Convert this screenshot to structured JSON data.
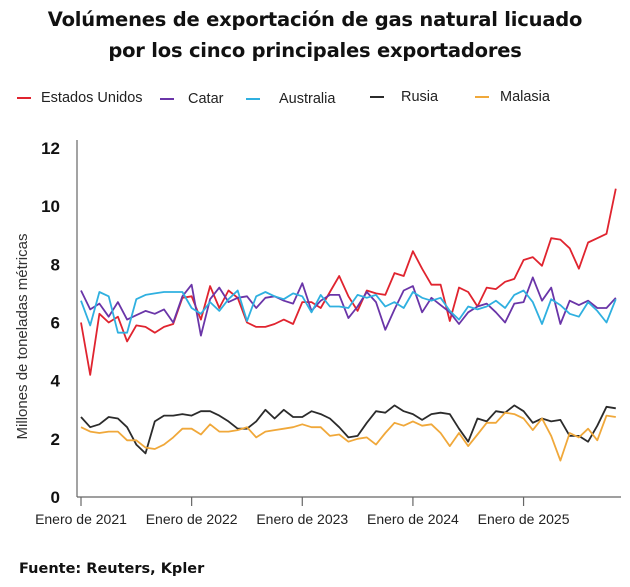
{
  "title_line1": "Volúmenes de exportación de gas natural licuado",
  "title_line2": "por los cinco principales exportadores",
  "source": "Fuente: Reuters, Kpler",
  "chart_data": {
    "type": "line",
    "title": "Volúmenes de exportación de gas natural licuado por los cinco principales exportadores",
    "xlabel": "",
    "ylabel": "Millones de toneladas métricas",
    "ylim": [
      0,
      12
    ],
    "yticks": [
      0,
      2,
      4,
      6,
      8,
      10,
      12
    ],
    "xtick_labels": [
      "Enero de 2021",
      "Enero de 2022",
      "Enero de 2023",
      "Enero de 2024",
      "Enero de 2025"
    ],
    "xtick_indices": [
      0,
      12,
      24,
      36,
      48
    ],
    "x_start": "Enero de 2021",
    "x_frequency": "monthly",
    "grid": false,
    "legend_position": "top",
    "series": [
      {
        "name": "Estados Unidos",
        "color": "#e0242f",
        "values": [
          6.0,
          4.2,
          6.3,
          6.0,
          6.2,
          5.35,
          5.9,
          5.85,
          5.65,
          5.85,
          5.95,
          6.85,
          6.9,
          6.1,
          7.25,
          6.5,
          7.1,
          6.85,
          6.0,
          5.85,
          5.85,
          5.95,
          6.1,
          5.95,
          6.7,
          6.7,
          6.5,
          7.05,
          7.6,
          6.9,
          6.4,
          7.1,
          7.0,
          6.95,
          7.7,
          7.6,
          8.45,
          7.85,
          7.3,
          7.3,
          6.05,
          7.2,
          7.05,
          6.55,
          7.2,
          7.15,
          7.4,
          7.5,
          8.15,
          8.25,
          7.95,
          8.9,
          8.85,
          8.55,
          7.85,
          8.75,
          8.9,
          9.05,
          10.6
        ]
      },
      {
        "name": "Catar",
        "color": "#6a35a8",
        "values": [
          7.1,
          6.45,
          6.65,
          6.2,
          6.7,
          6.1,
          6.25,
          6.4,
          6.3,
          6.45,
          6.0,
          6.9,
          7.3,
          5.55,
          6.8,
          7.2,
          6.7,
          6.85,
          6.9,
          6.5,
          6.85,
          6.9,
          6.75,
          6.65,
          7.35,
          6.4,
          6.75,
          6.95,
          6.95,
          6.15,
          6.55,
          7.05,
          6.7,
          5.75,
          6.45,
          7.1,
          7.25,
          6.35,
          6.85,
          6.6,
          6.35,
          5.95,
          6.35,
          6.55,
          6.65,
          6.35,
          6.0,
          6.65,
          6.7,
          7.55,
          6.75,
          7.2,
          5.95,
          6.75,
          6.6,
          6.75,
          6.5,
          6.5,
          6.85
        ]
      },
      {
        "name": "Australia",
        "color": "#2fb0e0",
        "values": [
          6.75,
          5.9,
          7.05,
          6.9,
          5.65,
          5.65,
          6.8,
          6.95,
          7.0,
          7.05,
          7.05,
          7.05,
          6.5,
          6.3,
          6.7,
          6.4,
          6.8,
          7.1,
          6.05,
          6.9,
          7.05,
          6.9,
          6.8,
          7.0,
          6.9,
          6.35,
          6.95,
          6.55,
          6.55,
          6.5,
          6.95,
          6.85,
          6.95,
          6.55,
          6.7,
          6.5,
          7.05,
          6.85,
          6.75,
          6.85,
          6.4,
          6.1,
          6.55,
          6.45,
          6.55,
          6.75,
          6.5,
          6.95,
          7.1,
          6.7,
          5.95,
          6.8,
          6.6,
          6.3,
          6.2,
          6.7,
          6.4,
          6.0,
          6.8
        ]
      },
      {
        "name": "Rusia",
        "color": "#2b2b2b",
        "values": [
          2.75,
          2.4,
          2.5,
          2.75,
          2.7,
          2.4,
          1.8,
          1.5,
          2.6,
          2.8,
          2.8,
          2.85,
          2.8,
          2.95,
          2.95,
          2.8,
          2.6,
          2.35,
          2.35,
          2.6,
          3.0,
          2.7,
          3.0,
          2.75,
          2.75,
          2.95,
          2.85,
          2.7,
          2.4,
          2.05,
          2.1,
          2.55,
          2.95,
          2.9,
          3.15,
          2.95,
          2.85,
          2.65,
          2.85,
          2.9,
          2.85,
          2.35,
          1.9,
          2.7,
          2.6,
          2.95,
          2.9,
          3.15,
          2.95,
          2.55,
          2.7,
          2.6,
          2.65,
          2.1,
          2.1,
          1.9,
          2.45,
          3.1,
          3.05
        ]
      },
      {
        "name": "Malasia",
        "color": "#f0a83a",
        "values": [
          2.4,
          2.25,
          2.2,
          2.25,
          2.25,
          1.95,
          1.95,
          1.7,
          1.65,
          1.8,
          2.05,
          2.35,
          2.35,
          2.15,
          2.5,
          2.25,
          2.25,
          2.3,
          2.4,
          2.05,
          2.25,
          2.3,
          2.35,
          2.4,
          2.5,
          2.4,
          2.4,
          2.1,
          2.15,
          1.9,
          2.0,
          2.05,
          1.8,
          2.2,
          2.55,
          2.45,
          2.6,
          2.45,
          2.5,
          2.2,
          1.75,
          2.2,
          1.75,
          2.15,
          2.55,
          2.55,
          2.9,
          2.85,
          2.7,
          2.3,
          2.7,
          2.1,
          1.25,
          2.2,
          2.05,
          2.35,
          1.95,
          2.8,
          2.75
        ]
      }
    ]
  }
}
